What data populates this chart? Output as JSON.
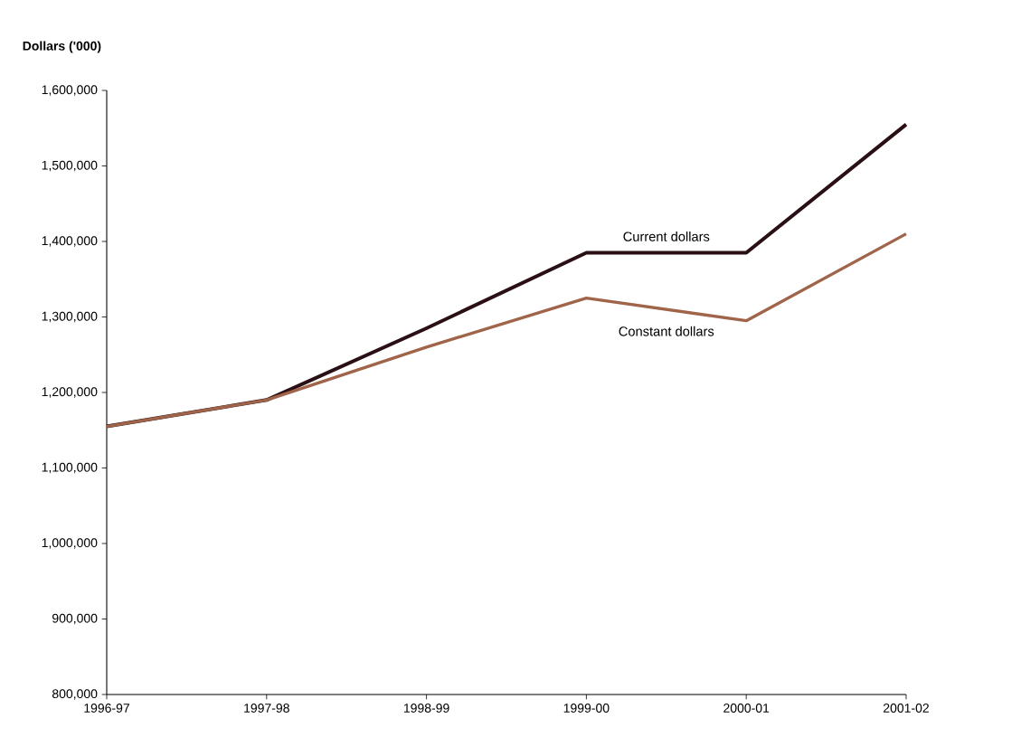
{
  "chart_data": {
    "type": "line",
    "ylabel": "Dollars ('000)",
    "categories": [
      "1996-97",
      "1997-98",
      "1998-99",
      "1999-00",
      "2000-01",
      "2001-02"
    ],
    "series": [
      {
        "name": "Current dollars",
        "color": "#2a1014",
        "values": [
          1155000,
          1190000,
          1285000,
          1385000,
          1385000,
          1555000
        ]
      },
      {
        "name": "Constant dollars",
        "color": "#a0644a",
        "values": [
          1155000,
          1190000,
          1260000,
          1325000,
          1295000,
          1410000
        ]
      }
    ],
    "ylim": [
      800000,
      1600000
    ],
    "yticks": [
      {
        "value": 800000,
        "label": "800,000"
      },
      {
        "value": 900000,
        "label": "900,000"
      },
      {
        "value": 1000000,
        "label": "1,000,000"
      },
      {
        "value": 1100000,
        "label": "1,100,000"
      },
      {
        "value": 1200000,
        "label": "1,200,000"
      },
      {
        "value": 1300000,
        "label": "1,300,000"
      },
      {
        "value": 1400000,
        "label": "1,400,000"
      },
      {
        "value": 1500000,
        "label": "1,500,000"
      },
      {
        "value": 1600000,
        "label": "1,600,000"
      }
    ]
  }
}
